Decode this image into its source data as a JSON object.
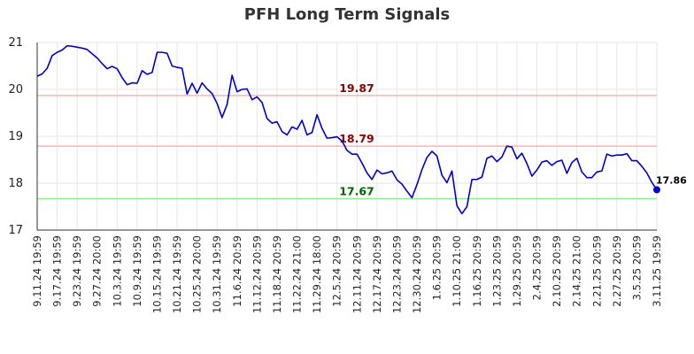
{
  "chart_data": {
    "type": "line",
    "title": "PFH Long Term Signals",
    "xlabel": "",
    "ylabel": "",
    "ylim": [
      17,
      21
    ],
    "yticks": [
      17,
      18,
      19,
      20,
      21
    ],
    "grid": true,
    "colors": {
      "line": "#0000cc",
      "upper": "#8b0000",
      "upper_line": "#ffb3b3",
      "middle": "#8b0000",
      "middle_line": "#ffb3b3",
      "lower": "#006400",
      "lower_line": "#90ee90",
      "grid": "#e6e6e6"
    },
    "x_tick_labels": [
      "9.11.24 19:59",
      "9.17.24 19:59",
      "9.23.24 19:59",
      "9.27.24 20:00",
      "10.3.24 19:59",
      "10.9.24 19:59",
      "10.15.24 19:59",
      "10.21.24 19:59",
      "10.25.24 20:00",
      "10.31.24 19:59",
      "11.6.24 20:59",
      "11.12.24 20:59",
      "11.18.24 20:59",
      "11.22.24 21:00",
      "11.29.24 18:00",
      "12.5.24 20:59",
      "12.11.24 20:59",
      "12.17.24 20:59",
      "12.23.24 20:59",
      "12.30.24 20:59",
      "1.6.25 20:59",
      "1.10.25 21:00",
      "1.16.25 20:59",
      "1.23.25 20:59",
      "1.29.25 20:59",
      "2.4.25 20:59",
      "2.10.25 20:59",
      "2.14.25 21:00",
      "2.21.25 20:59",
      "2.27.25 20:59",
      "3.5.25 20:59",
      "3.11.25 19:59"
    ],
    "reference_lines": [
      {
        "value": 19.87,
        "label": "19.87"
      },
      {
        "value": 18.79,
        "label": "18.79"
      },
      {
        "value": 17.67,
        "label": "17.67"
      }
    ],
    "last_value_label": "17.86",
    "series": [
      {
        "values": [
          20.28,
          20.33,
          20.45,
          20.72,
          20.79,
          20.84,
          20.93,
          20.92,
          20.9,
          20.88,
          20.85,
          20.76,
          20.67,
          20.55,
          20.44,
          20.49,
          20.44,
          20.25,
          20.1,
          20.14,
          20.13,
          20.4,
          20.32,
          20.36,
          20.79,
          20.79,
          20.77,
          20.5,
          20.47,
          20.45,
          19.9,
          20.13,
          19.92,
          20.14,
          20.01,
          19.91,
          19.7,
          19.4,
          19.68,
          20.3,
          19.95,
          20.0,
          20.01,
          19.78,
          19.84,
          19.72,
          19.38,
          19.28,
          19.31,
          19.1,
          19.03,
          19.2,
          19.15,
          19.34,
          19.03,
          19.08,
          19.46,
          19.17,
          18.96,
          18.97,
          18.99,
          18.9,
          18.7,
          18.62,
          18.62,
          18.43,
          18.22,
          18.08,
          18.28,
          18.2,
          18.22,
          18.26,
          18.07,
          17.98,
          17.83,
          17.69,
          17.97,
          18.29,
          18.55,
          18.68,
          18.58,
          18.17,
          18.01,
          18.26,
          17.52,
          17.35,
          17.5,
          18.08,
          18.08,
          18.13,
          18.53,
          18.58,
          18.46,
          18.56,
          18.79,
          18.77,
          18.52,
          18.64,
          18.42,
          18.15,
          18.28,
          18.45,
          18.48,
          18.38,
          18.46,
          18.49,
          18.21,
          18.44,
          18.53,
          18.24,
          18.12,
          18.12,
          18.24,
          18.26,
          18.62,
          18.58,
          18.6,
          18.6,
          18.63,
          18.48,
          18.48,
          18.36,
          18.22,
          18.02,
          17.86
        ]
      }
    ]
  }
}
